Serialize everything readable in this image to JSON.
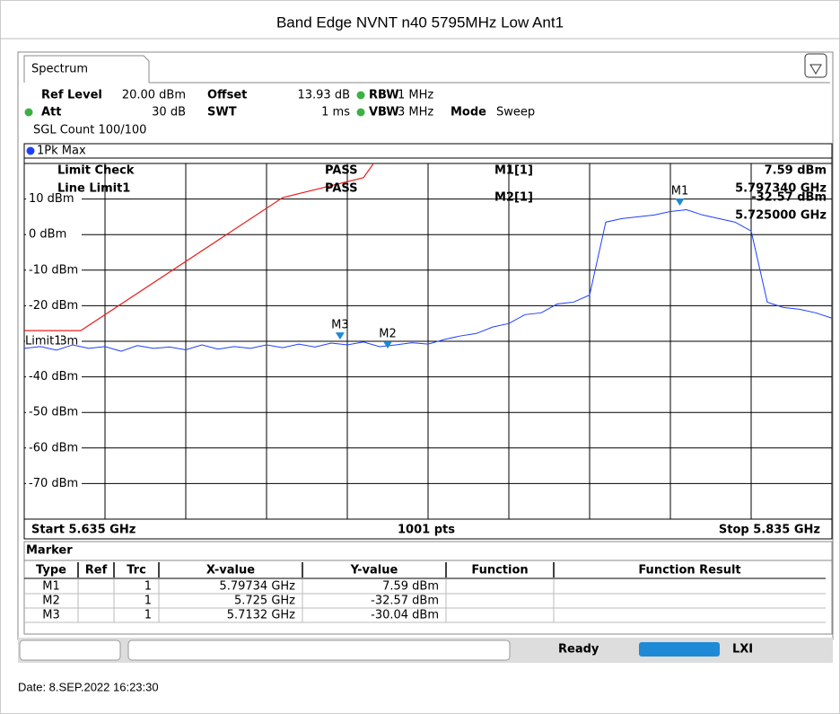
{
  "header": {
    "title": "Band Edge NVNT n40 5795MHz Low Ant1"
  },
  "instrument": {
    "tab": "Spectrum",
    "settings": [
      {
        "label": "Ref Level",
        "value": "20.00 dBm"
      },
      {
        "label": "Offset",
        "value": "13.93 dB"
      },
      {
        "label": "RBW",
        "value": "1 MHz"
      },
      {
        "label": "Att",
        "value": "30 dB"
      },
      {
        "label": "SWT",
        "value": "1 ms"
      },
      {
        "label": "VBW",
        "value": "3 MHz"
      },
      {
        "label": "Mode",
        "value": "Sweep"
      }
    ],
    "count": "SGL Count 100/100",
    "status": "Ready"
  },
  "chart_data": {
    "type": "line",
    "x": [
      5.635,
      5.639,
      5.643,
      5.647,
      5.651,
      5.655,
      5.659,
      5.663,
      5.667,
      5.671,
      5.675,
      5.679,
      5.683,
      5.687,
      5.691,
      5.695,
      5.699,
      5.703,
      5.707,
      5.711,
      5.715,
      5.719,
      5.723,
      5.727,
      5.731,
      5.735,
      5.739,
      5.743,
      5.747,
      5.751,
      5.755,
      5.759,
      5.763,
      5.767,
      5.771,
      5.775,
      5.779,
      5.783,
      5.787,
      5.791,
      5.795,
      5.799,
      5.803,
      5.807,
      5.811,
      5.815,
      5.819,
      5.823,
      5.827,
      5.831,
      5.835
    ],
    "series": [
      {
        "name": "1Pk Max",
        "color": "#1f3fff",
        "values": [
          -32,
          -31.5,
          -32.5,
          -31,
          -32,
          -31.5,
          -32.8,
          -31.2,
          -32,
          -31.6,
          -32.4,
          -31,
          -32.2,
          -31.5,
          -32,
          -31,
          -31.8,
          -30.8,
          -31.6,
          -30.5,
          -31,
          -30.2,
          -31.5,
          -31,
          -30.4,
          -30.8,
          -29.5,
          -28.5,
          -27.8,
          -26,
          -25,
          -22.5,
          -22,
          -19.5,
          -19,
          -17,
          3.5,
          4.5,
          5,
          5.5,
          6.5,
          7,
          5.5,
          4.5,
          3.5,
          1,
          -19,
          -20.5,
          -21,
          -22,
          -23.5
        ]
      }
    ],
    "limit_line": {
      "name": "Limit1",
      "color": "#e8201c",
      "x": [
        5.635,
        5.649,
        5.699,
        5.719,
        5.7215
      ],
      "values": [
        -27,
        -27,
        10.4,
        16,
        20
      ]
    },
    "xlim": [
      5.635,
      5.835
    ],
    "ylim": [
      -80,
      20
    ],
    "yticks": [
      {
        "value": 10,
        "label": "10 dBm"
      },
      {
        "value": 0,
        "label": "0 dBm"
      },
      {
        "value": -10,
        "label": "-10 dBm"
      },
      {
        "value": -20,
        "label": "-20 dBm"
      },
      {
        "value": -30,
        "label": "-30 dBm"
      },
      {
        "value": -40,
        "label": "-40 dBm"
      },
      {
        "value": -50,
        "label": "-50 dBm"
      },
      {
        "value": -60,
        "label": "-60 dBm"
      },
      {
        "value": -70,
        "label": "-70 dBm"
      }
    ],
    "grid": true,
    "x_start": "Start 5.635 GHz",
    "x_points": "1001 pts",
    "x_stop": "Stop 5.835 GHz",
    "markers": [
      {
        "label": "M1",
        "x": 5.79734,
        "y": 7.59
      },
      {
        "label": "M2",
        "x": 5.725,
        "y": -32.57
      },
      {
        "label": "M3",
        "x": 5.7132,
        "y": -30.04
      }
    ],
    "limit_check": {
      "title": "Limit Check",
      "result": "PASS",
      "line": "Line Limit1",
      "line_result": "PASS"
    },
    "readouts": [
      {
        "label": "M1[1]",
        "value": "7.59 dBm",
        "freq": "5.797340 GHz"
      },
      {
        "label": "M2[1]",
        "value": "-32.57 dBm",
        "freq": "5.725000 GHz"
      }
    ]
  },
  "marker_table": {
    "title": "Marker",
    "columns": [
      "Type",
      "Ref",
      "Trc",
      "X-value",
      "Y-value",
      "Function",
      "Function Result"
    ],
    "rows": [
      {
        "type": "M1",
        "trc": "1",
        "x": "5.79734 GHz",
        "y": "7.59 dBm"
      },
      {
        "type": "M2",
        "trc": "1",
        "x": "5.725 GHz",
        "y": "-32.57 dBm"
      },
      {
        "type": "M3",
        "trc": "1",
        "x": "5.7132 GHz",
        "y": "-30.04 dBm"
      }
    ]
  },
  "footer": {
    "date": "Date: 8.SEP.2022  16:23:30"
  }
}
